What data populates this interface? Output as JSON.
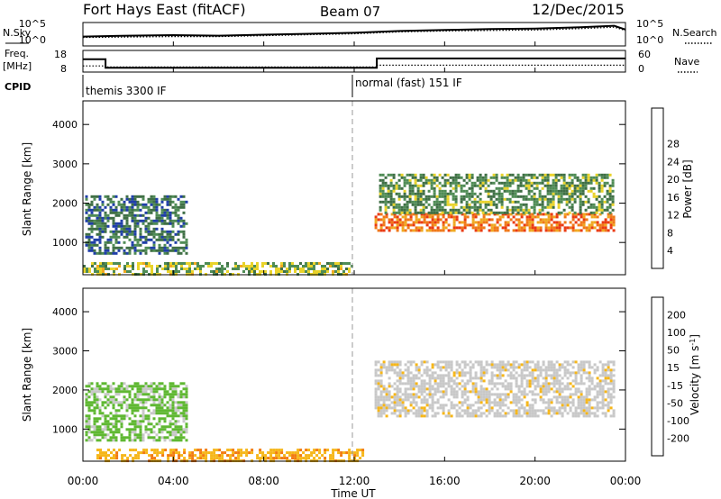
{
  "header": {
    "radar": "Fort Hays East (fitACF)",
    "beam": "Beam 07",
    "date": "12/Dec/2015"
  },
  "panel_labels": {
    "nsky": "N.Sky",
    "nsearch": "N.Search",
    "freq_line1": "Freq.",
    "freq_line2": "[MHz]",
    "nave": "Nave",
    "cpid": "CPID",
    "cpid_left": "themis 3300 IF",
    "cpid_right": "normal (fast) 151 IF"
  },
  "noise_axis": {
    "left_ticks": [
      "10^5",
      "10^0"
    ],
    "right_ticks": [
      "10^5",
      "10^0"
    ]
  },
  "freq_axis": {
    "left_ticks": [
      "18",
      "8"
    ],
    "right_ticks": [
      "60",
      "0"
    ]
  },
  "time_axis": {
    "xlabel": "Time UT",
    "ticks": [
      "00:00",
      "04:00",
      "08:00",
      "12:00",
      "16:00",
      "20:00",
      "00:00"
    ]
  },
  "colors": {
    "power_scale": [
      "#0a1ee6",
      "#1f3ea8",
      "#3f6f45",
      "#4f8c55",
      "#e9d32a",
      "#f0a820",
      "#f07818",
      "#ea3a12",
      "#e20000"
    ],
    "velocity_scale": [
      "#ee1010",
      "#f24418",
      "#f27a10",
      "#f6b618",
      "#c8c8c8",
      "#c8c8c8",
      "#5fb832",
      "#2e7f3a",
      "#2336b0"
    ]
  },
  "chart_data": [
    {
      "type": "line",
      "name": "noise-panel",
      "x_hours": [
        0,
        2,
        4,
        6,
        8,
        10,
        12,
        14,
        16,
        18,
        20,
        22,
        23.5,
        24
      ],
      "series": [
        {
          "name": "N.Sky",
          "values": [
            2.0,
            2.2,
            2.3,
            2.2,
            2.4,
            2.6,
            2.8,
            3.2,
            3.4,
            3.6,
            3.7,
            4.0,
            4.3,
            3.5
          ]
        },
        {
          "name": "N.Search",
          "values": [
            1.8,
            1.9,
            2.0,
            2.0,
            2.2,
            2.4,
            2.6,
            3.0,
            3.2,
            3.3,
            3.4,
            3.7,
            4.0,
            3.3
          ]
        }
      ],
      "ylim": [
        0,
        5
      ]
    },
    {
      "type": "line",
      "name": "freq-nave-panel",
      "series": [
        {
          "name": "Freq",
          "points": [
            [
              0,
              13.9
            ],
            [
              1.0,
              13.9
            ],
            [
              1.0,
              10.0
            ],
            [
              13.0,
              10.0
            ],
            [
              13.0,
              14.3
            ],
            [
              24,
              14.3
            ]
          ]
        },
        {
          "name": "Nave",
          "points": [
            [
              0,
              17
            ],
            [
              1.0,
              17
            ],
            [
              1.0,
              14
            ],
            [
              13.0,
              14
            ],
            [
              13.0,
              19
            ],
            [
              24,
              19
            ]
          ]
        }
      ],
      "freq_ylim": [
        8,
        18
      ],
      "nave_ylim": [
        0,
        60
      ]
    },
    {
      "type": "heatmap",
      "name": "power",
      "ylabel": "Slant Range [km]",
      "colorbar_label": "Power [dB]",
      "colorbar_ticks": [
        4,
        8,
        12,
        16,
        20,
        24,
        28
      ],
      "xlim_hours": [
        0,
        24
      ],
      "ylim_km": [
        180,
        4600
      ],
      "y_ticks": [
        1000,
        2000,
        3000,
        4000
      ],
      "regions": [
        {
          "t": [
            0.1,
            4.6
          ],
          "r": [
            700,
            2200
          ],
          "value": 10
        },
        {
          "t": [
            0.0,
            12.0
          ],
          "r": [
            180,
            500
          ],
          "value": 16
        },
        {
          "t": [
            12.9,
            23.6
          ],
          "r": [
            1300,
            1750
          ],
          "value": 26
        },
        {
          "t": [
            13.1,
            23.5
          ],
          "r": [
            1700,
            2750
          ],
          "value": 13
        }
      ]
    },
    {
      "type": "heatmap",
      "name": "velocity",
      "ylabel": "Slant Range [km]",
      "colorbar_label": "Velocity [m s^-1]",
      "colorbar_ticks": [
        -200,
        -100,
        -50,
        -15,
        15,
        50,
        100,
        200
      ],
      "xlim_hours": [
        0,
        24
      ],
      "ylim_km": [
        180,
        4600
      ],
      "y_ticks": [
        1000,
        2000,
        3000,
        4000
      ],
      "regions": [
        {
          "t": [
            0.1,
            4.6
          ],
          "r": [
            700,
            2200
          ],
          "value": 60
        },
        {
          "t": [
            0.6,
            12.5
          ],
          "r": [
            180,
            500
          ],
          "value": -40
        },
        {
          "t": [
            12.9,
            23.6
          ],
          "r": [
            1300,
            2750
          ],
          "value": 0
        }
      ]
    }
  ]
}
